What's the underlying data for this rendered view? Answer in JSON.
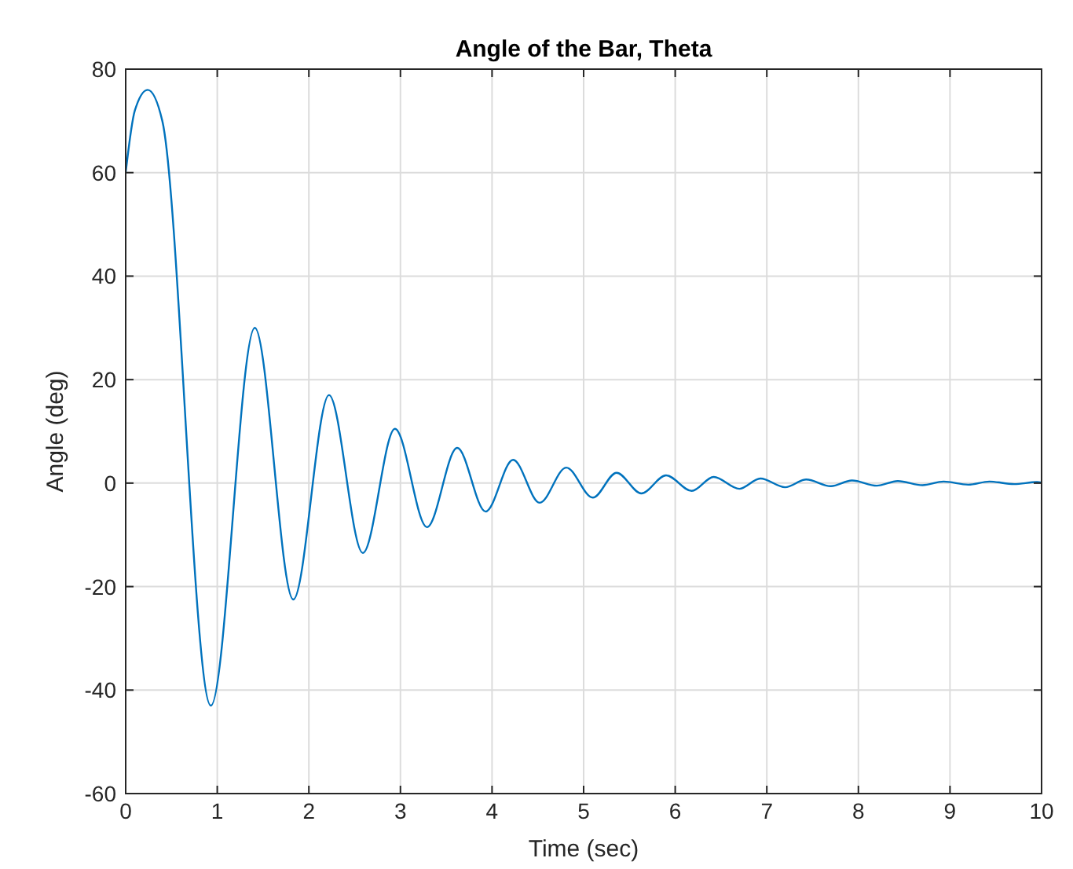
{
  "chart_data": {
    "type": "line",
    "title": "Angle of the Bar, Theta",
    "xlabel": "Time (sec)",
    "ylabel": "Angle (deg)",
    "series": [
      {
        "color": "#0072bd",
        "x": [
          0,
          0.1,
          0.24,
          0.4,
          0.93,
          1.41,
          1.83,
          2.22,
          2.59,
          2.94,
          3.29,
          3.62,
          3.93,
          4.23,
          4.52,
          4.81,
          5.1,
          5.36,
          5.63,
          5.9,
          6.18,
          6.42,
          6.7,
          6.93,
          7.2,
          7.43,
          7.7,
          7.93,
          8.2,
          8.43,
          8.7,
          8.93,
          9.2,
          9.43,
          9.7,
          9.95,
          10
        ],
        "values": [
          60,
          72,
          76,
          70,
          -43,
          30,
          -22.5,
          17,
          -13.5,
          10.5,
          -8.5,
          6.8,
          -5.5,
          4.5,
          -3.8,
          3,
          -2.8,
          2,
          -2,
          1.5,
          -1.5,
          1.2,
          -1.1,
          0.9,
          -0.8,
          0.7,
          -0.6,
          0.5,
          -0.5,
          0.4,
          -0.4,
          0.3,
          -0.3,
          0.3,
          -0.2,
          0.2,
          0.1
        ]
      }
    ],
    "xlim": [
      0,
      10
    ],
    "ylim": [
      -60,
      80
    ],
    "xticks": [
      0,
      1,
      2,
      3,
      4,
      5,
      6,
      7,
      8,
      9,
      10
    ],
    "yticks": [
      -60,
      -40,
      -20,
      0,
      20,
      40,
      60,
      80
    ],
    "grid": true,
    "marker": "none",
    "line_style": "solid"
  }
}
